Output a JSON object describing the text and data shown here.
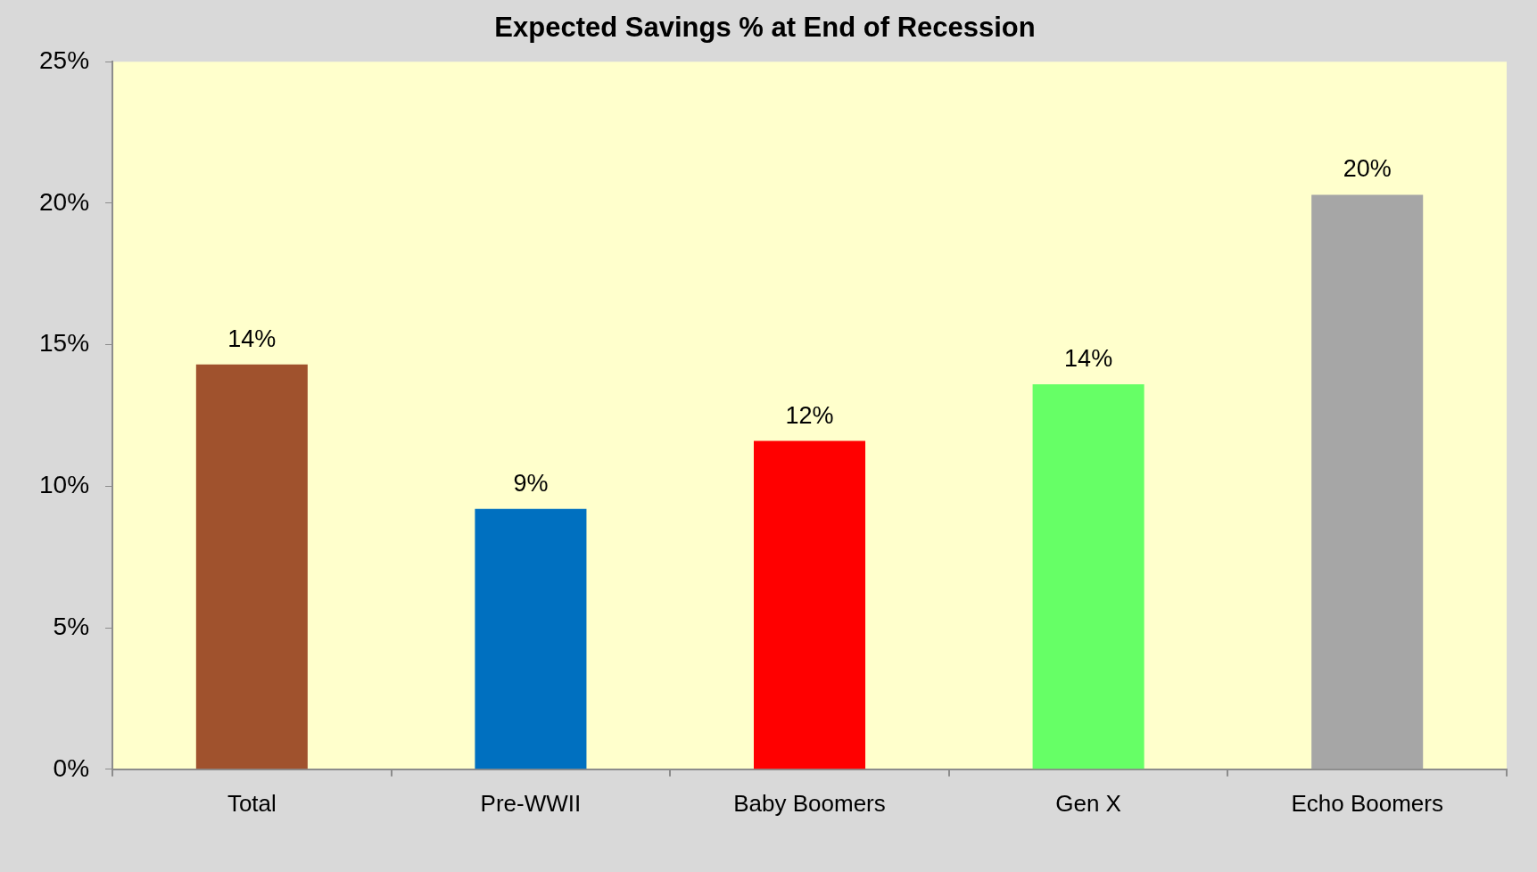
{
  "chart_data": {
    "type": "bar",
    "title": "Expected Savings % at End of Recession",
    "categories": [
      "Total",
      "Pre-WWII",
      "Baby Boomers",
      "Gen X",
      "Echo Boomers"
    ],
    "values": [
      14.3,
      9.2,
      11.6,
      13.6,
      20.3
    ],
    "colors": [
      "#a0522d",
      "#0070c0",
      "#ff0000",
      "#66ff66",
      "#a6a6a6"
    ],
    "value_labels": [
      "14%",
      "9%",
      "12%",
      "14%",
      "20%"
    ],
    "ylim": [
      0,
      25
    ],
    "yticks": [
      {
        "value": 0,
        "label": "0%"
      },
      {
        "value": 5,
        "label": "5%"
      },
      {
        "value": 10,
        "label": "10%"
      },
      {
        "value": 15,
        "label": "15%"
      },
      {
        "value": 20,
        "label": "20%"
      },
      {
        "value": 25,
        "label": "25%"
      }
    ]
  }
}
